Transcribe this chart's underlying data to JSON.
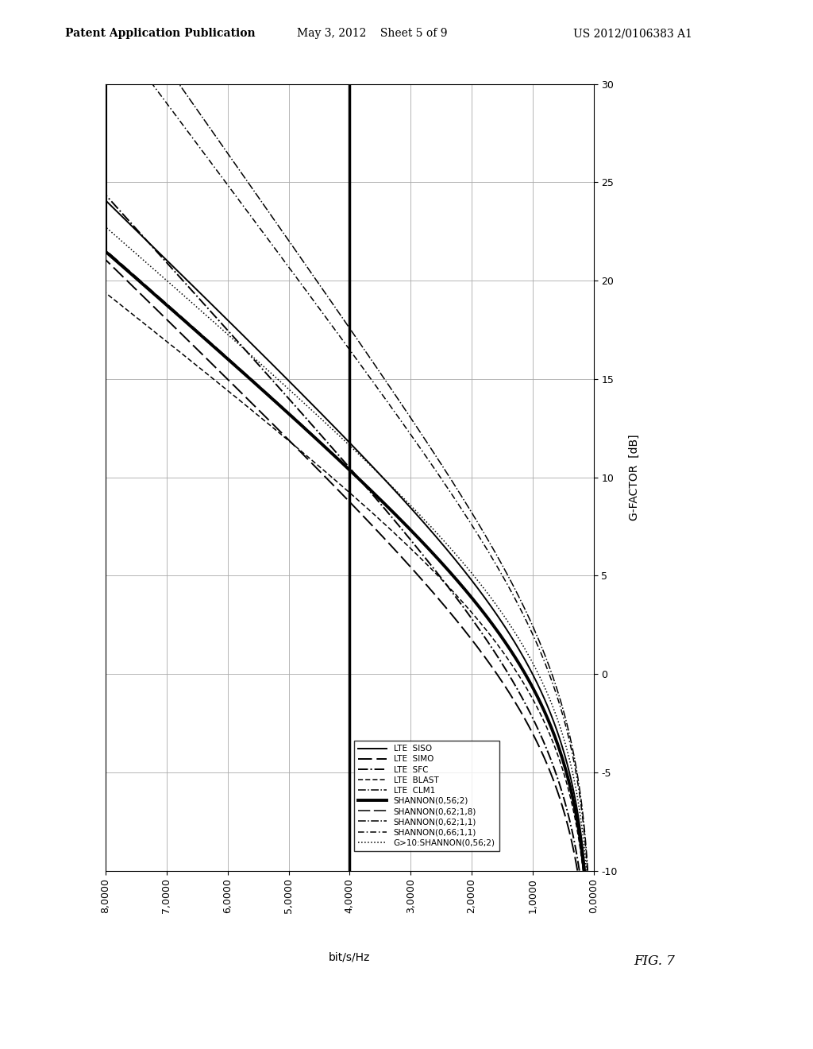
{
  "header_left": "Patent Application Publication",
  "header_mid": "May 3, 2012    Sheet 5 of 9",
  "header_right": "US 2012/0106383 A1",
  "fig_label": "FIG. 7",
  "g_label": "G-FACTOR  [dB]",
  "bps_label": "bit/s/Hz",
  "snr_lim": [
    -10,
    30
  ],
  "cap_lim": [
    0,
    8
  ],
  "snr_ticks": [
    -10,
    -5,
    0,
    5,
    10,
    15,
    20,
    25,
    30
  ],
  "cap_ticks": [
    0,
    1,
    2,
    3,
    4,
    5,
    6,
    7,
    8
  ],
  "cap_tick_labels": [
    "0,0000",
    "1,0000",
    "2,0000",
    "3,0000",
    "4,0000",
    "5,0000",
    "6,0000",
    "7,0000",
    "8,0000"
  ],
  "legend_labels": [
    "LTE  SISO",
    "LTE  SIMO",
    "LTE  SFC",
    "LTE  BLAST",
    "LTE  CLM1",
    "SHANNON(0,56;2)",
    "SHANNON(0,62;1,8)",
    "SHANNON(0,62;1,1)",
    "SHANNON(0,66;1,1)",
    "G>10:SHANNON(0,56;2)"
  ],
  "background_color": "#ffffff"
}
